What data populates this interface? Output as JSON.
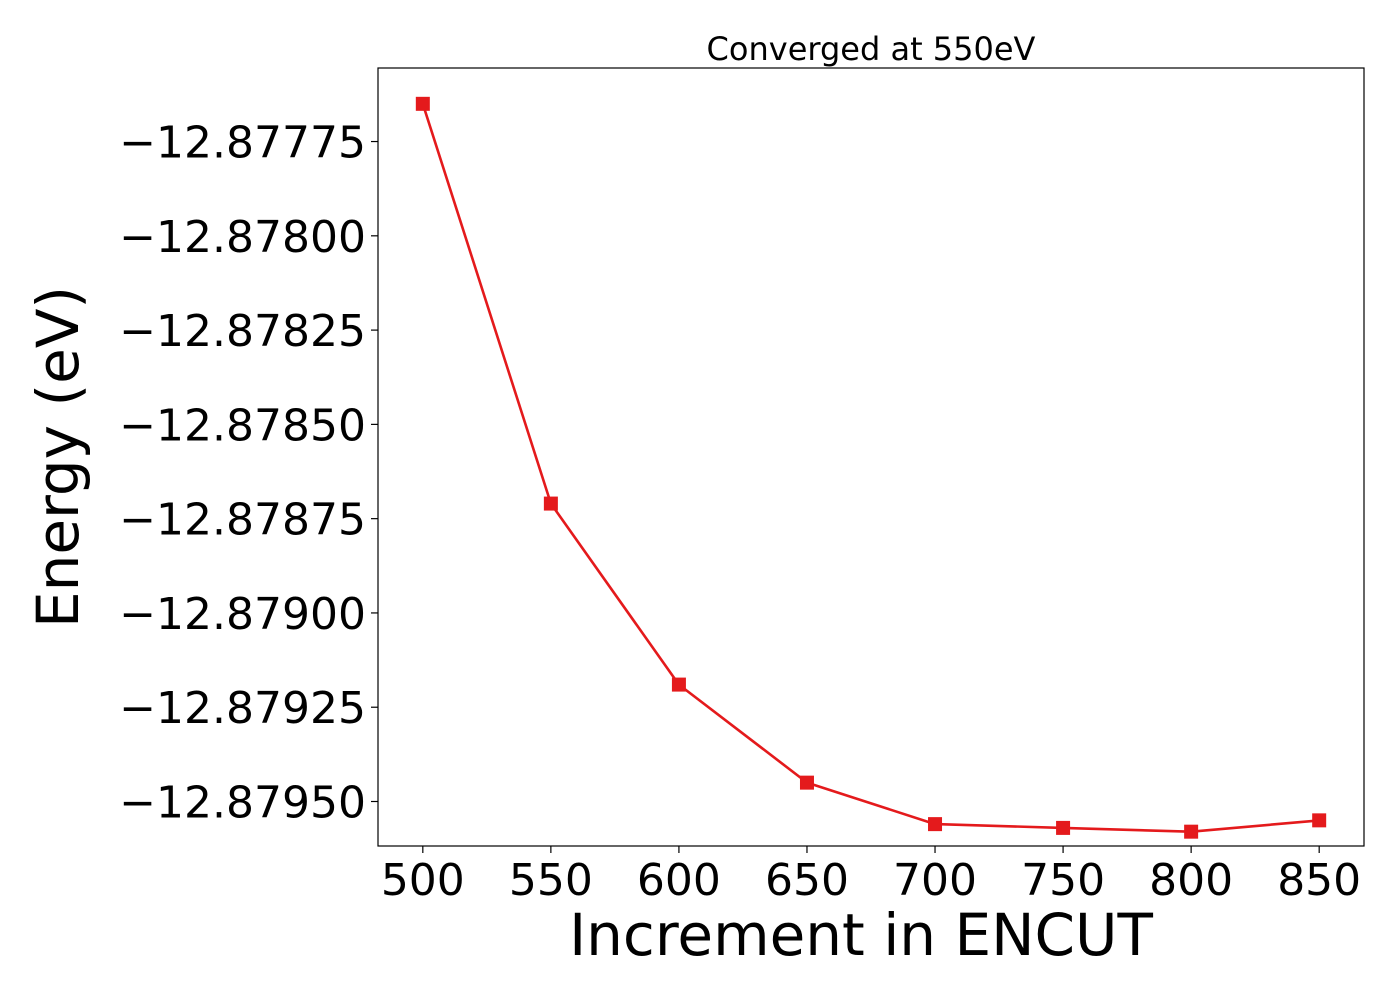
{
  "chart_data": {
    "type": "line",
    "title": "Converged at 550eV",
    "xlabel": "Increment in ENCUT",
    "ylabel": "Energy (eV)",
    "x": [
      500,
      550,
      600,
      650,
      700,
      750,
      800,
      850
    ],
    "series": [
      {
        "values": [
          -12.87765,
          -12.87871,
          -12.87919,
          -12.87945,
          -12.87956,
          -12.87957,
          -12.87958,
          -12.87955
        ],
        "color": "#e41a1c",
        "marker": "square"
      }
    ],
    "xticks": [
      500,
      550,
      600,
      650,
      700,
      750,
      800,
      850
    ],
    "xtick_labels": [
      "500",
      "550",
      "600",
      "650",
      "700",
      "750",
      "800",
      "850"
    ],
    "yticks": [
      -12.87775,
      -12.878,
      -12.87825,
      -12.8785,
      -12.87875,
      -12.879,
      -12.87925,
      -12.8795
    ],
    "ytick_labels": [
      "−12.87775",
      "−12.87800",
      "−12.87825",
      "−12.87850",
      "−12.87875",
      "−12.87900",
      "−12.87925",
      "−12.87950"
    ],
    "xlim": [
      482.5,
      867.5
    ],
    "ylim": [
      -12.879618,
      -12.877555
    ],
    "grid": false,
    "legend": "none"
  }
}
